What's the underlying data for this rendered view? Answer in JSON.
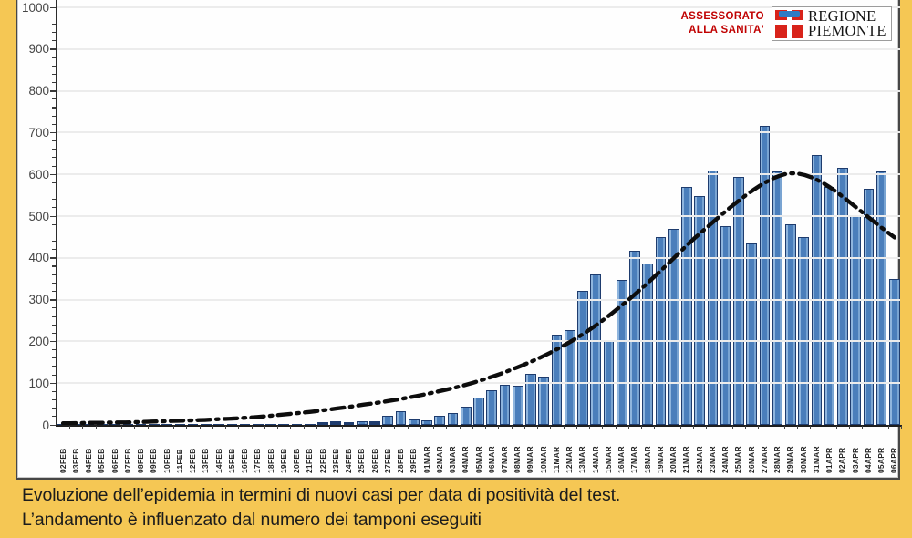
{
  "branding": {
    "assessorato_line1": "ASSESSORATO",
    "assessorato_line2": "ALLA SANITA'",
    "logo_text_line1": "REGIONE",
    "logo_text_line2": "PIEMONTE"
  },
  "caption": {
    "line1": "Evoluzione dell’epidemia in termini di nuovi casi per data di positività del test.",
    "line2": "L’andamento è influenzato dal numero dei tamponi eseguiti"
  },
  "chart_data": {
    "type": "bar",
    "title": "",
    "xlabel": "",
    "ylabel": "",
    "ylim": [
      0,
      1000
    ],
    "ytick_step": 100,
    "ytick_minor_step": 20,
    "grid": true,
    "legend": false,
    "categories": [
      "02FEB",
      "03FEB",
      "04FEB",
      "05FEB",
      "06FEB",
      "07FEB",
      "08FEB",
      "09FEB",
      "10FEB",
      "11FEB",
      "12FEB",
      "13FEB",
      "14FEB",
      "15FEB",
      "16FEB",
      "17FEB",
      "18FEB",
      "19FEB",
      "20FEB",
      "21FEB",
      "22FEB",
      "23FEB",
      "24FEB",
      "25FEB",
      "26FEB",
      "27FEB",
      "28FEB",
      "29FEB",
      "01MAR",
      "02MAR",
      "03MAR",
      "04MAR",
      "05MAR",
      "06MAR",
      "07MAR",
      "08MAR",
      "09MAR",
      "10MAR",
      "11MAR",
      "12MAR",
      "13MAR",
      "14MAR",
      "15MAR",
      "16MAR",
      "17MAR",
      "18MAR",
      "19MAR",
      "20MAR",
      "21MAR",
      "22MAR",
      "23MAR",
      "24MAR",
      "25MAR",
      "26MAR",
      "27MAR",
      "28MAR",
      "29MAR",
      "30MAR",
      "31MAR",
      "01APR",
      "02APR",
      "03APR",
      "04APR",
      "05APR",
      "06APR"
    ],
    "series": [
      {
        "name": "nuovi casi per data di positività",
        "type": "bar",
        "values": [
          2,
          2,
          2,
          2,
          2,
          2,
          2,
          2,
          2,
          2,
          2,
          2,
          2,
          2,
          2,
          2,
          2,
          3,
          3,
          3,
          6,
          8,
          6,
          9,
          8,
          22,
          32,
          13,
          11,
          21,
          28,
          43,
          66,
          83,
          97,
          94,
          122,
          116,
          216,
          227,
          321,
          361,
          203,
          347,
          418,
          386,
          450,
          470,
          570,
          549,
          610,
          475,
          593,
          435,
          716,
          606,
          481,
          449,
          647,
          569,
          616,
          499,
          566,
          606,
          350
        ]
      },
      {
        "name": "andamento (linea tratteggiata)",
        "type": "line",
        "values": [
          4,
          4,
          5,
          5,
          6,
          6,
          7,
          8,
          9,
          10,
          11,
          12,
          14,
          15,
          17,
          19,
          22,
          25,
          28,
          31,
          35,
          39,
          43,
          48,
          52,
          57,
          62,
          68,
          74,
          81,
          88,
          96,
          105,
          115,
          126,
          138,
          151,
          165,
          181,
          198,
          217,
          238,
          261,
          286,
          312,
          340,
          369,
          399,
          430,
          458,
          485,
          512,
          537,
          560,
          580,
          596,
          604,
          600,
          588,
          570,
          547,
          522,
          497,
          472,
          449
        ]
      }
    ],
    "colors": {
      "background": "#F5C754",
      "panel": "#FEFEFE",
      "panel_border": "#474747",
      "bar_fill": "#4A7EBB",
      "bar_border": "#1E3C6E",
      "gridline": "#ECECEC",
      "trend_line": "#0D0D0D",
      "axis": "#2B2B2B",
      "assessorato_text": "#C00000",
      "logo_red": "#D8231A",
      "logo_blue": "#2F7BC4"
    }
  }
}
